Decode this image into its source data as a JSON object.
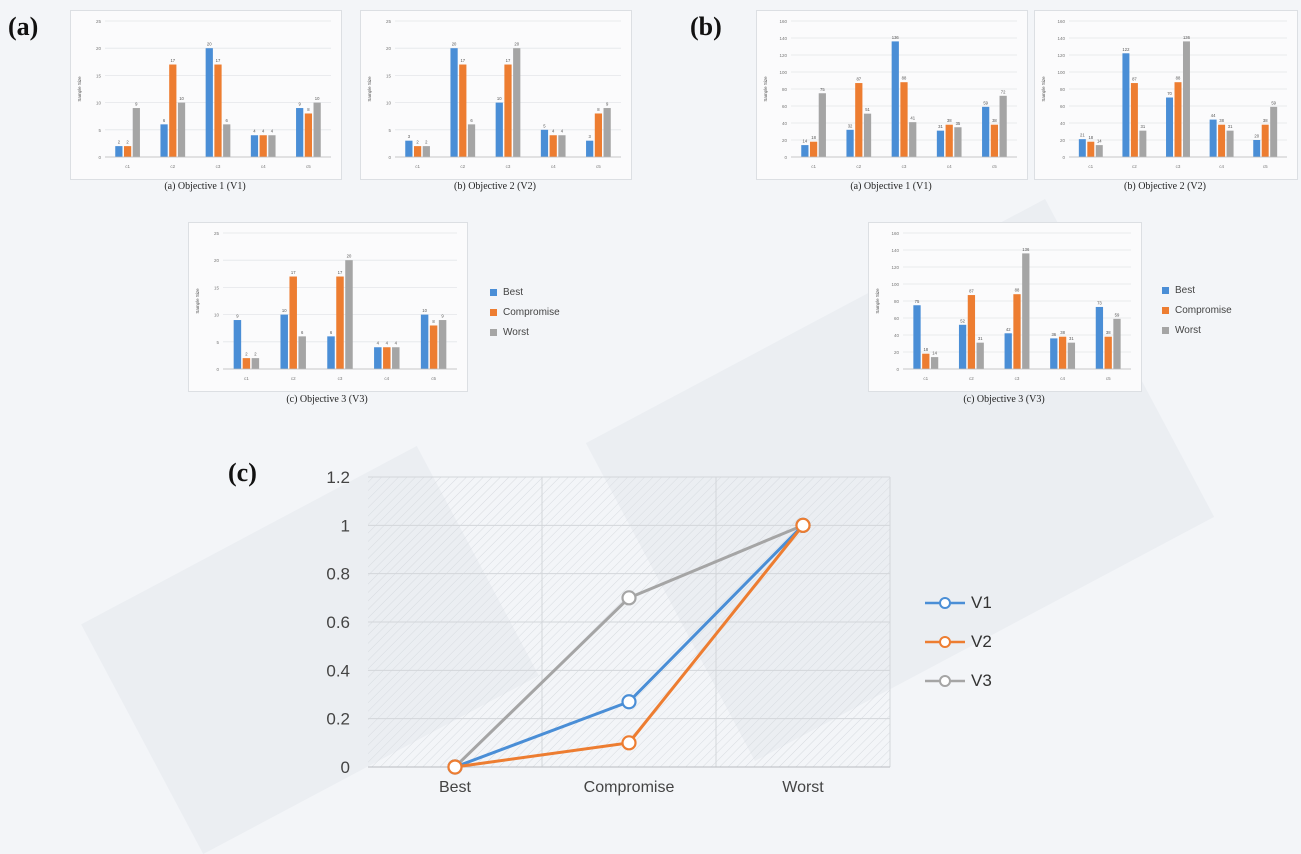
{
  "panels": {
    "a": "(a)",
    "b": "(b)",
    "c": "(c)"
  },
  "colors": {
    "Best": "#4a8ed6",
    "Compromise": "#ed7d31",
    "Worst": "#a5a5a5"
  },
  "legend_labels": [
    "Best",
    "Compromise",
    "Worst"
  ],
  "chart_data": [
    {
      "type": "bar",
      "id": "a1",
      "title": "(a) Objective 1 (V1)",
      "ylabel": "Sample Size",
      "ylim": [
        0,
        25
      ],
      "yticks": [
        0,
        5,
        10,
        15,
        20,
        25
      ],
      "categories": [
        "c1",
        "c2",
        "c3",
        "c4",
        "c5"
      ],
      "series": [
        {
          "name": "Best",
          "values": [
            2,
            6,
            20,
            4,
            9
          ]
        },
        {
          "name": "Compromise",
          "values": [
            2,
            17,
            17,
            4,
            8
          ]
        },
        {
          "name": "Worst",
          "values": [
            9,
            10,
            6,
            4,
            10
          ]
        }
      ]
    },
    {
      "type": "bar",
      "id": "a2",
      "title": "(b) Objective 2 (V2)",
      "ylabel": "Sample Size",
      "ylim": [
        0,
        25
      ],
      "yticks": [
        0,
        5,
        10,
        15,
        20,
        25
      ],
      "categories": [
        "c1",
        "c2",
        "c3",
        "c4",
        "c5"
      ],
      "series": [
        {
          "name": "Best",
          "values": [
            3,
            20,
            10,
            5,
            3
          ]
        },
        {
          "name": "Compromise",
          "values": [
            2,
            17,
            17,
            4,
            8
          ]
        },
        {
          "name": "Worst",
          "values": [
            2,
            6,
            20,
            4,
            9
          ]
        }
      ]
    },
    {
      "type": "bar",
      "id": "a3",
      "title": "(c) Objective 3 (V3)",
      "ylabel": "Sample Size",
      "ylim": [
        0,
        25
      ],
      "yticks": [
        0,
        5,
        10,
        15,
        20,
        25
      ],
      "categories": [
        "c1",
        "c2",
        "c3",
        "c4",
        "c5"
      ],
      "series": [
        {
          "name": "Best",
          "values": [
            9,
            10,
            6,
            4,
            10
          ]
        },
        {
          "name": "Compromise",
          "values": [
            2,
            17,
            17,
            4,
            8
          ]
        },
        {
          "name": "Worst",
          "values": [
            2,
            6,
            20,
            4,
            9
          ]
        }
      ]
    },
    {
      "type": "bar",
      "id": "b1",
      "title": "(a) Objective 1 (V1)",
      "ylabel": "Sample Size",
      "ylim": [
        0,
        160
      ],
      "yticks": [
        0,
        20,
        40,
        60,
        80,
        100,
        120,
        140,
        160
      ],
      "categories": [
        "c1",
        "c2",
        "c3",
        "c4",
        "c5"
      ],
      "series": [
        {
          "name": "Best",
          "values": [
            14,
            32,
            136,
            31,
            59
          ]
        },
        {
          "name": "Compromise",
          "values": [
            18,
            87,
            88,
            38,
            38
          ]
        },
        {
          "name": "Worst",
          "values": [
            75,
            51,
            41,
            35,
            72
          ]
        }
      ]
    },
    {
      "type": "bar",
      "id": "b2",
      "title": "(b) Objective 2 (V2)",
      "ylabel": "Sample Size",
      "ylim": [
        0,
        160
      ],
      "yticks": [
        0,
        20,
        40,
        60,
        80,
        100,
        120,
        140,
        160
      ],
      "categories": [
        "c1",
        "c2",
        "c3",
        "c4",
        "c5"
      ],
      "series": [
        {
          "name": "Best",
          "values": [
            21,
            122,
            70,
            44,
            20
          ]
        },
        {
          "name": "Compromise",
          "values": [
            18,
            87,
            88,
            38,
            38
          ]
        },
        {
          "name": "Worst",
          "values": [
            14,
            31,
            136,
            31,
            59
          ]
        }
      ]
    },
    {
      "type": "bar",
      "id": "b3",
      "title": "(c) Objective 3 (V3)",
      "ylabel": "Sample Size",
      "ylim": [
        0,
        160
      ],
      "yticks": [
        0,
        20,
        40,
        60,
        80,
        100,
        120,
        140,
        160
      ],
      "categories": [
        "c1",
        "c2",
        "c3",
        "c4",
        "c5"
      ],
      "series": [
        {
          "name": "Best",
          "values": [
            75,
            52,
            42,
            36,
            73
          ]
        },
        {
          "name": "Compromise",
          "values": [
            18,
            87,
            88,
            38,
            38
          ]
        },
        {
          "name": "Worst",
          "values": [
            14,
            31,
            136,
            31,
            59
          ]
        }
      ]
    },
    {
      "type": "line",
      "id": "c",
      "categories": [
        "Best",
        "Compromise",
        "Worst"
      ],
      "ylim": [
        0,
        1.2
      ],
      "yticks": [
        "0",
        "0.2",
        "0.4",
        "0.6",
        "0.8",
        "1",
        "1.2"
      ],
      "series": [
        {
          "name": "V1",
          "values": [
            0,
            0.27,
            1
          ],
          "color": "#4a8ed6"
        },
        {
          "name": "V2",
          "values": [
            0,
            0.1,
            1
          ],
          "color": "#ed7d31"
        },
        {
          "name": "V3",
          "values": [
            0,
            0.7,
            1
          ],
          "color": "#a5a5a5"
        }
      ]
    }
  ]
}
